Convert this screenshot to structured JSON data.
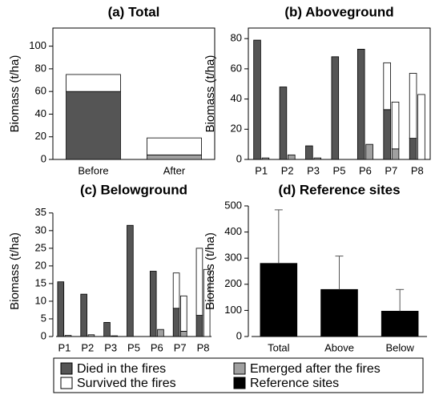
{
  "chart_data": [
    {
      "type": "bar",
      "title": "(a) Total",
      "ylabel": "Biomass (t/ha)",
      "categories": [
        "Before",
        "After"
      ],
      "series": [
        {
          "name": "Died in the fires",
          "color": "#555555",
          "stacks": [
            0
          ],
          "values": [
            60,
            null
          ]
        },
        {
          "name": "Emerged after the fires",
          "color": "#a0a0a0",
          "stacks": [
            0
          ],
          "values": [
            null,
            4
          ]
        },
        {
          "name": "Survived the fires",
          "color": "#ffffff",
          "stacks": [
            0
          ],
          "values": [
            15,
            15
          ]
        }
      ],
      "ylim": [
        0,
        116
      ],
      "yticks": [
        0,
        20,
        40,
        60,
        80,
        100
      ]
    },
    {
      "type": "bar",
      "title": "(b) Aboveground",
      "ylabel": "Biomass (t/ha)",
      "categories": [
        "P1",
        "P2",
        "P3",
        "P5",
        "P6",
        "P7",
        "P8"
      ],
      "series": [
        {
          "name": "Died in the fires",
          "color": "#555555",
          "stacks": [
            0
          ],
          "values": [
            79,
            48,
            9,
            68,
            73,
            33,
            14
          ]
        },
        {
          "name": "Emerged after the fires",
          "color": "#a0a0a0",
          "stacks": [
            1
          ],
          "values": [
            1,
            3,
            1,
            0,
            10,
            7,
            0
          ]
        },
        {
          "name": "Survived the fires",
          "color": "#ffffff",
          "stacks": [
            0,
            1
          ],
          "values": [
            0,
            0,
            0,
            0,
            0,
            31,
            43
          ]
        }
      ],
      "ylim": [
        0,
        87
      ],
      "yticks": [
        0,
        20,
        40,
        60,
        80
      ]
    },
    {
      "type": "bar",
      "title": "(c) Belowground",
      "ylabel": "Biomass (t/ha)",
      "categories": [
        "P1",
        "P2",
        "P3",
        "P5",
        "P6",
        "P7",
        "P8"
      ],
      "series": [
        {
          "name": "Died in the fires",
          "color": "#555555",
          "stacks": [
            0
          ],
          "values": [
            15.5,
            12,
            4,
            31.5,
            18.5,
            8,
            6
          ]
        },
        {
          "name": "Emerged after the fires",
          "color": "#a0a0a0",
          "stacks": [
            1
          ],
          "values": [
            0.3,
            0.5,
            0.2,
            0,
            2,
            1.5,
            0
          ]
        },
        {
          "name": "Survived the fires",
          "color": "#ffffff",
          "stacks": [
            0,
            1
          ],
          "values": [
            0,
            0,
            0,
            0,
            0,
            10,
            19
          ]
        }
      ],
      "ylim": [
        0,
        37
      ],
      "yticks": [
        0,
        5,
        10,
        15,
        20,
        25,
        30,
        35
      ]
    },
    {
      "type": "bar",
      "title": "(d) Reference sites",
      "ylabel": "Biomass (t/ha)",
      "categories": [
        "Total",
        "Above",
        "Below"
      ],
      "series": [
        {
          "name": "Reference sites",
          "color": "#000000",
          "stacks": [
            0
          ],
          "values": [
            280,
            180,
            97
          ],
          "errors": [
            205,
            128,
            83
          ]
        }
      ],
      "ylim": [
        0,
        500
      ],
      "yticks": [
        0,
        100,
        200,
        300,
        400,
        500
      ]
    }
  ]
}
